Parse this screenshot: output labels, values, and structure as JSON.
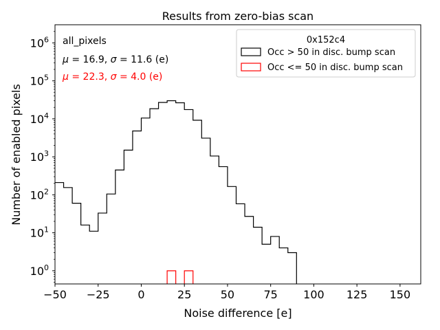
{
  "chart_data": {
    "type": "histogram",
    "title": "Results from zero-bias scan",
    "xlabel": "Noise difference [e]",
    "ylabel": "Number of enabled pixels",
    "xlim": [
      -50,
      162
    ],
    "ylim": [
      0.45,
      3000000
    ],
    "yscale": "log",
    "bin_width": 5,
    "x_ticks": [
      -50,
      -25,
      0,
      25,
      50,
      75,
      100,
      125,
      150
    ],
    "x_tick_labels": [
      "−50",
      "−25",
      "0",
      "25",
      "50",
      "75",
      "100",
      "125",
      "150"
    ],
    "y_ticks": [
      1,
      10,
      100,
      1000,
      10000,
      100000,
      1000000
    ],
    "y_tick_labels": [
      {
        "base": "10",
        "exp": "0"
      },
      {
        "base": "10",
        "exp": "1"
      },
      {
        "base": "10",
        "exp": "2"
      },
      {
        "base": "10",
        "exp": "3"
      },
      {
        "base": "10",
        "exp": "4"
      },
      {
        "base": "10",
        "exp": "5"
      },
      {
        "base": "10",
        "exp": "6"
      }
    ],
    "annotations": [
      {
        "text": "all_pixels",
        "color": "#000000"
      },
      {
        "parts": [
          "μ",
          " = 16.9, ",
          "σ",
          " = 11.6 (e)"
        ],
        "color": "#000000"
      },
      {
        "parts": [
          "μ",
          " = 22.3, ",
          "σ",
          " = 4.0 (e)"
        ],
        "color": "#ff0000"
      }
    ],
    "legend": {
      "title": "0x152c4",
      "position": "top-right",
      "entries": [
        {
          "label": "Occ > 50 in disc. bump scan",
          "color": "#000000"
        },
        {
          "label": "Occ <= 50 in disc. bump scan",
          "color": "#ff0000"
        }
      ]
    },
    "series": [
      {
        "name": "Occ > 50 in disc. bump scan",
        "color": "#000000",
        "bin_edges": [
          -50,
          -45,
          -40,
          -35,
          -30,
          -25,
          -20,
          -15,
          -10,
          -5,
          0,
          5,
          10,
          15,
          20,
          25,
          30,
          35,
          40,
          45,
          50,
          55,
          60,
          65,
          70,
          75,
          80,
          85,
          90
        ],
        "counts": [
          210,
          155,
          60,
          16,
          11,
          33,
          105,
          450,
          1500,
          4800,
          10500,
          18500,
          27000,
          30000,
          26500,
          17500,
          9200,
          3100,
          1050,
          550,
          165,
          58,
          27,
          14,
          5,
          8,
          4,
          3
        ]
      },
      {
        "name": "Occ <= 50 in disc. bump scan",
        "color": "#ff0000",
        "bins": [
          [
            15,
            20,
            1
          ],
          [
            25,
            30,
            1
          ]
        ]
      }
    ]
  }
}
